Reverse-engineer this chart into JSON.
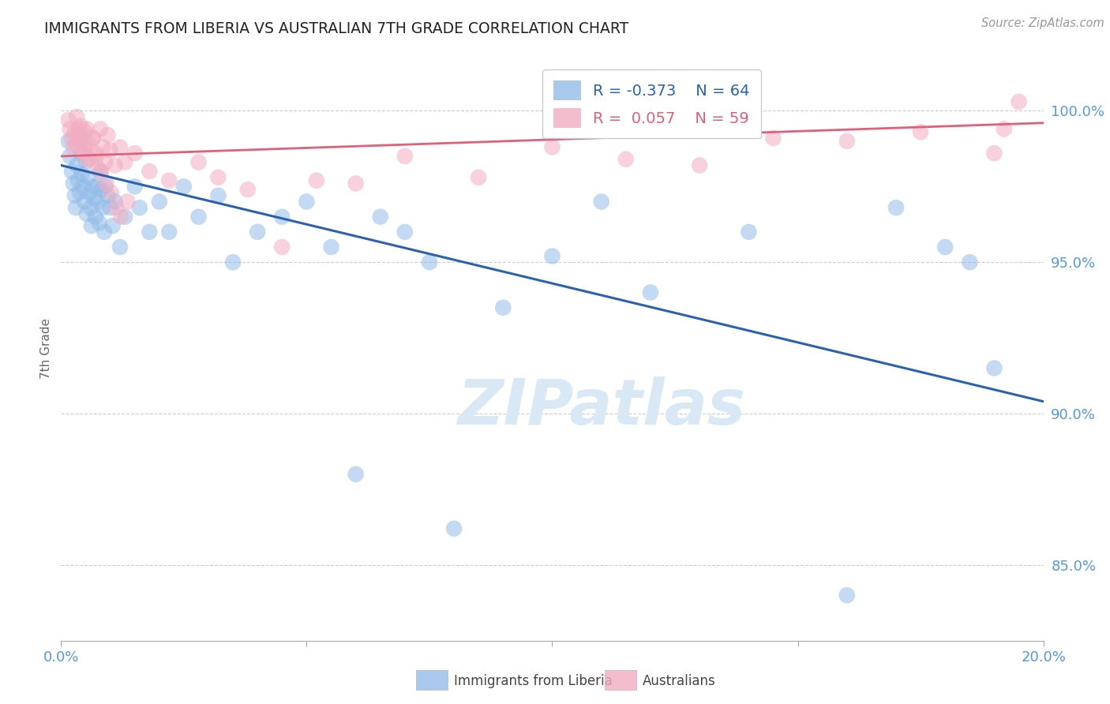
{
  "title": "IMMIGRANTS FROM LIBERIA VS AUSTRALIAN 7TH GRADE CORRELATION CHART",
  "source": "Source: ZipAtlas.com",
  "xlim": [
    0.0,
    20.0
  ],
  "ylim": [
    0.825,
    1.018
  ],
  "blue_label": "Immigrants from Liberia",
  "pink_label": "Australians",
  "R_blue": -0.373,
  "N_blue": 64,
  "R_pink": 0.057,
  "N_pink": 59,
  "blue_color": "#92bce8",
  "pink_color": "#f2adc2",
  "blue_line_color": "#2a62b0",
  "pink_line_color": "#e0607a",
  "background_color": "#ffffff",
  "title_color": "#222222",
  "axis_label_color": "#5599dd",
  "watermark_color": "#d8e8f5",
  "blue_x": [
    0.15,
    0.18,
    0.22,
    0.25,
    0.28,
    0.3,
    0.32,
    0.35,
    0.38,
    0.4,
    0.42,
    0.45,
    0.48,
    0.5,
    0.52,
    0.55,
    0.58,
    0.6,
    0.62,
    0.65,
    0.68,
    0.7,
    0.72,
    0.75,
    0.78,
    0.8,
    0.82,
    0.85,
    0.88,
    0.9,
    0.95,
    1.0,
    1.05,
    1.1,
    1.2,
    1.3,
    1.5,
    1.6,
    1.8,
    2.0,
    2.2,
    2.5,
    2.8,
    3.2,
    3.5,
    4.0,
    4.5,
    5.0,
    5.5,
    6.0,
    6.5,
    7.0,
    7.5,
    8.0,
    9.0,
    10.0,
    11.0,
    12.0,
    14.0,
    16.0,
    17.0,
    18.0,
    18.5,
    19.0
  ],
  "blue_y": [
    0.99,
    0.985,
    0.98,
    0.976,
    0.972,
    0.968,
    0.982,
    0.977,
    0.973,
    0.986,
    0.979,
    0.975,
    0.97,
    0.983,
    0.966,
    0.978,
    0.973,
    0.968,
    0.962,
    0.975,
    0.971,
    0.965,
    0.975,
    0.97,
    0.963,
    0.98,
    0.974,
    0.968,
    0.96,
    0.975,
    0.972,
    0.968,
    0.962,
    0.97,
    0.955,
    0.965,
    0.975,
    0.968,
    0.96,
    0.97,
    0.96,
    0.975,
    0.965,
    0.972,
    0.95,
    0.96,
    0.965,
    0.97,
    0.955,
    0.88,
    0.965,
    0.96,
    0.95,
    0.862,
    0.935,
    0.952,
    0.97,
    0.94,
    0.96,
    0.84,
    0.968,
    0.955,
    0.95,
    0.915
  ],
  "pink_x": [
    0.15,
    0.18,
    0.22,
    0.25,
    0.28,
    0.3,
    0.32,
    0.35,
    0.38,
    0.4,
    0.42,
    0.45,
    0.48,
    0.5,
    0.52,
    0.55,
    0.6,
    0.65,
    0.7,
    0.75,
    0.8,
    0.85,
    0.9,
    0.95,
    1.0,
    1.1,
    1.2,
    1.3,
    1.5,
    1.8,
    2.2,
    2.8,
    3.2,
    3.8,
    4.5,
    5.2,
    6.0,
    7.0,
    8.5,
    10.0,
    11.5,
    13.0,
    14.5,
    16.0,
    17.5,
    19.0,
    0.35,
    0.45,
    0.55,
    0.65,
    0.72,
    0.82,
    0.92,
    1.02,
    1.12,
    1.22,
    1.35,
    19.2,
    19.5
  ],
  "pink_y": [
    0.997,
    0.994,
    0.991,
    0.988,
    0.993,
    0.989,
    0.998,
    0.994,
    0.99,
    0.995,
    0.991,
    0.986,
    0.993,
    0.988,
    0.994,
    0.989,
    0.984,
    0.991,
    0.986,
    0.981,
    0.994,
    0.988,
    0.983,
    0.992,
    0.987,
    0.982,
    0.988,
    0.983,
    0.986,
    0.98,
    0.977,
    0.983,
    0.978,
    0.974,
    0.955,
    0.977,
    0.976,
    0.985,
    0.978,
    0.988,
    0.984,
    0.982,
    0.991,
    0.99,
    0.993,
    0.986,
    0.993,
    0.988,
    0.984,
    0.991,
    0.985,
    0.98,
    0.976,
    0.973,
    0.968,
    0.965,
    0.97,
    0.994,
    1.003
  ],
  "blue_trendline_x": [
    0.0,
    20.0
  ],
  "blue_trendline_y": [
    0.982,
    0.904
  ],
  "pink_trendline_x": [
    0.0,
    20.0
  ],
  "pink_trendline_y": [
    0.985,
    0.996
  ],
  "ytick_positions": [
    0.85,
    0.9,
    0.95,
    1.0
  ],
  "ytick_labels": [
    "85.0%",
    "90.0%",
    "95.0%",
    "100.0%"
  ],
  "xtick_positions": [
    0,
    5,
    10,
    15,
    20
  ],
  "xtick_labels": [
    "0.0%",
    "",
    "",
    "",
    "20.0%"
  ]
}
